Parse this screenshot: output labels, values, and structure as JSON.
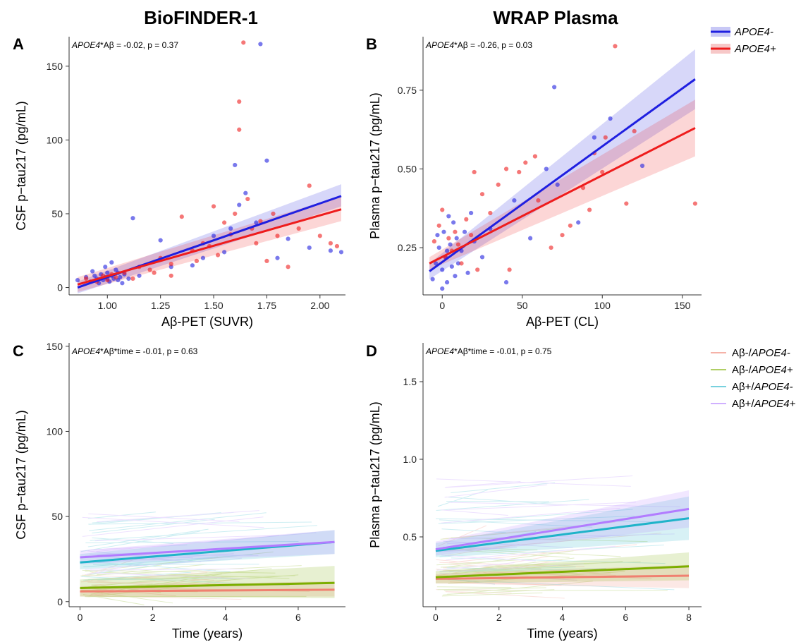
{
  "headers": {
    "left": "BioFINDER-1",
    "right": "WRAP Plasma"
  },
  "legend_top": {
    "entries": [
      {
        "label": "APOE4-",
        "color": "#1f1fe0"
      },
      {
        "label": "APOE4+",
        "color": "#ee1c1c"
      }
    ]
  },
  "legend_bottom": {
    "entries": [
      {
        "label_plain": "Aβ-/",
        "label_italic": "APOE4-",
        "color": "#f08070"
      },
      {
        "label_plain": "Aβ-/",
        "label_italic": "APOE4+",
        "color": "#7cae00"
      },
      {
        "label_plain": "Aβ+/",
        "label_italic": "APOE4-",
        "color": "#1fb3c9"
      },
      {
        "label_plain": "Aβ+/",
        "label_italic": "APOE4+",
        "color": "#b27cff"
      }
    ]
  },
  "chart_data": [
    {
      "panel": "A",
      "type": "scatter",
      "annotation_italic": "APOE4",
      "annotation_rest": "*Aβ = -0.02, p = 0.37",
      "xlabel": "Aβ-PET (SUVR)",
      "ylabel": "CSF p−tau217 (pg/mL)",
      "xlim": [
        0.82,
        2.12
      ],
      "ylim": [
        -5,
        170
      ],
      "xticks": [
        1.0,
        1.25,
        1.5,
        1.75,
        2.0
      ],
      "xtick_labels": [
        "1.00",
        "1.25",
        "1.50",
        "1.75",
        "2.00"
      ],
      "yticks": [
        0,
        50,
        100,
        150
      ],
      "ytick_labels": [
        "0",
        "50",
        "100",
        "150"
      ],
      "series": [
        {
          "name": "APOE4-",
          "color": "#1f1fe0",
          "fit": {
            "x": [
              0.86,
              2.1
            ],
            "y": [
              0,
              62
            ]
          },
          "ci_low": [
            -4,
            55
          ],
          "ci_high": [
            4,
            70
          ],
          "points": [
            [
              0.86,
              5
            ],
            [
              0.9,
              7
            ],
            [
              0.92,
              4
            ],
            [
              0.94,
              8
            ],
            [
              0.95,
              6
            ],
            [
              0.96,
              3
            ],
            [
              0.97,
              9
            ],
            [
              0.98,
              5
            ],
            [
              0.99,
              7
            ],
            [
              1.0,
              6
            ],
            [
              1.0,
              10
            ],
            [
              1.01,
              4
            ],
            [
              1.02,
              8
            ],
            [
              1.03,
              6
            ],
            [
              1.04,
              12
            ],
            [
              1.05,
              5
            ],
            [
              1.06,
              7
            ],
            [
              1.07,
              3
            ],
            [
              1.08,
              9
            ],
            [
              1.1,
              6
            ],
            [
              1.12,
              47
            ],
            [
              0.93,
              11
            ],
            [
              0.99,
              14
            ],
            [
              1.02,
              17
            ],
            [
              1.05,
              10
            ],
            [
              1.15,
              8
            ],
            [
              1.25,
              32
            ],
            [
              1.3,
              14
            ],
            [
              1.4,
              15
            ],
            [
              1.45,
              20
            ],
            [
              1.55,
              24
            ],
            [
              1.6,
              83
            ],
            [
              1.62,
              56
            ],
            [
              1.65,
              64
            ],
            [
              1.7,
              44
            ],
            [
              1.72,
              165
            ],
            [
              1.75,
              86
            ],
            [
              1.8,
              20
            ],
            [
              1.85,
              33
            ],
            [
              1.95,
              27
            ],
            [
              2.05,
              25
            ],
            [
              2.1,
              24
            ],
            [
              1.5,
              35
            ],
            [
              1.58,
              40
            ]
          ]
        },
        {
          "name": "APOE4+",
          "color": "#ee1c1c",
          "fit": {
            "x": [
              0.86,
              2.1
            ],
            "y": [
              2,
              53
            ]
          },
          "ci_low": [
            -3,
            45
          ],
          "ci_high": [
            7,
            62
          ],
          "points": [
            [
              0.9,
              6
            ],
            [
              0.95,
              4
            ],
            [
              0.98,
              8
            ],
            [
              1.0,
              5
            ],
            [
              1.02,
              9
            ],
            [
              1.04,
              7
            ],
            [
              1.08,
              10
            ],
            [
              1.12,
              6
            ],
            [
              1.15,
              14
            ],
            [
              1.2,
              12
            ],
            [
              1.25,
              20
            ],
            [
              1.3,
              16
            ],
            [
              1.35,
              48
            ],
            [
              1.4,
              25
            ],
            [
              1.45,
              30
            ],
            [
              1.5,
              55
            ],
            [
              1.55,
              44
            ],
            [
              1.58,
              36
            ],
            [
              1.6,
              50
            ],
            [
              1.62,
              126
            ],
            [
              1.62,
              107
            ],
            [
              1.64,
              166
            ],
            [
              1.66,
              60
            ],
            [
              1.68,
              40
            ],
            [
              1.7,
              30
            ],
            [
              1.72,
              45
            ],
            [
              1.75,
              18
            ],
            [
              1.78,
              50
            ],
            [
              1.8,
              35
            ],
            [
              1.85,
              14
            ],
            [
              1.9,
              40
            ],
            [
              1.95,
              69
            ],
            [
              2.0,
              35
            ],
            [
              2.05,
              30
            ],
            [
              2.08,
              28
            ],
            [
              1.48,
              28
            ],
            [
              1.52,
              22
            ],
            [
              1.42,
              18
            ],
            [
              1.3,
              8
            ],
            [
              1.22,
              10
            ]
          ]
        }
      ]
    },
    {
      "panel": "B",
      "type": "scatter",
      "annotation_italic": "APOE4",
      "annotation_rest": "*Aβ = -0.26, p = 0.03",
      "xlabel": "Aβ-PET (CL)",
      "ylabel": "Plasma p−tau217 (pg/mL)",
      "xlim": [
        -12,
        162
      ],
      "ylim": [
        0.1,
        0.92
      ],
      "xticks": [
        0,
        50,
        100,
        150
      ],
      "xtick_labels": [
        "0",
        "50",
        "100",
        "150"
      ],
      "yticks": [
        0.25,
        0.5,
        0.75
      ],
      "ytick_labels": [
        "0.25",
        "0.50",
        "0.75"
      ],
      "series": [
        {
          "name": "APOE4-",
          "color": "#1f1fe0",
          "fit": {
            "x": [
              -8,
              158
            ],
            "y": [
              0.175,
              0.785
            ]
          },
          "ci_low": [
            0.15,
            0.69
          ],
          "ci_high": [
            0.2,
            0.88
          ],
          "points": [
            [
              -6,
              0.15
            ],
            [
              -4,
              0.2
            ],
            [
              -2,
              0.25
            ],
            [
              0,
              0.18
            ],
            [
              1,
              0.3
            ],
            [
              2,
              0.22
            ],
            [
              3,
              0.14
            ],
            [
              4,
              0.35
            ],
            [
              5,
              0.26
            ],
            [
              6,
              0.19
            ],
            [
              7,
              0.33
            ],
            [
              8,
              0.16
            ],
            [
              9,
              0.28
            ],
            [
              10,
              0.2
            ],
            [
              12,
              0.24
            ],
            [
              14,
              0.3
            ],
            [
              16,
              0.17
            ],
            [
              18,
              0.36
            ],
            [
              20,
              0.27
            ],
            [
              25,
              0.22
            ],
            [
              30,
              0.31
            ],
            [
              40,
              0.14
            ],
            [
              45,
              0.4
            ],
            [
              55,
              0.28
            ],
            [
              65,
              0.5
            ],
            [
              70,
              0.76
            ],
            [
              72,
              0.45
            ],
            [
              85,
              0.33
            ],
            [
              95,
              0.6
            ],
            [
              105,
              0.66
            ],
            [
              125,
              0.51
            ],
            [
              0,
              0.12
            ],
            [
              3,
              0.24
            ],
            [
              -3,
              0.29
            ]
          ]
        },
        {
          "name": "APOE4+",
          "color": "#ee1c1c",
          "fit": {
            "x": [
              -8,
              158
            ],
            "y": [
              0.2,
              0.63
            ]
          },
          "ci_low": [
            0.18,
            0.54
          ],
          "ci_high": [
            0.22,
            0.72
          ],
          "points": [
            [
              -5,
              0.27
            ],
            [
              -2,
              0.32
            ],
            [
              0,
              0.37
            ],
            [
              2,
              0.22
            ],
            [
              4,
              0.28
            ],
            [
              6,
              0.24
            ],
            [
              8,
              0.3
            ],
            [
              10,
              0.26
            ],
            [
              12,
              0.2
            ],
            [
              15,
              0.34
            ],
            [
              18,
              0.29
            ],
            [
              20,
              0.49
            ],
            [
              22,
              0.18
            ],
            [
              25,
              0.42
            ],
            [
              30,
              0.36
            ],
            [
              35,
              0.45
            ],
            [
              40,
              0.5
            ],
            [
              42,
              0.18
            ],
            [
              48,
              0.49
            ],
            [
              52,
              0.52
            ],
            [
              58,
              0.54
            ],
            [
              60,
              0.4
            ],
            [
              68,
              0.25
            ],
            [
              75,
              0.29
            ],
            [
              80,
              0.32
            ],
            [
              88,
              0.44
            ],
            [
              92,
              0.37
            ],
            [
              95,
              0.55
            ],
            [
              100,
              0.49
            ],
            [
              102,
              0.6
            ],
            [
              108,
              0.89
            ],
            [
              115,
              0.39
            ],
            [
              120,
              0.62
            ],
            [
              158,
              0.39
            ]
          ]
        }
      ]
    },
    {
      "panel": "C",
      "type": "line",
      "annotation_italic": "APOE4",
      "annotation_rest": "*Aβ*time = -0.01, p = 0.63",
      "xlabel": "Time (years)",
      "ylabel": "CSF p−tau217 (pg/mL)",
      "xlim": [
        -0.3,
        7.3
      ],
      "ylim": [
        -3,
        152
      ],
      "xticks": [
        0,
        2,
        4,
        6
      ],
      "xtick_labels": [
        "0",
        "2",
        "4",
        "6"
      ],
      "yticks": [
        0,
        50,
        100,
        150
      ],
      "ytick_labels": [
        "0",
        "50",
        "100",
        "150"
      ],
      "series": [
        {
          "name": "Aβ-/APOE4-",
          "color": "#f08070",
          "fit": {
            "x": [
              0,
              7
            ],
            "y": [
              6,
              7
            ]
          },
          "ci_low": [
            3,
            3
          ],
          "ci_high": [
            9,
            12
          ]
        },
        {
          "name": "Aβ-/APOE4+",
          "color": "#7cae00",
          "fit": {
            "x": [
              0,
              7
            ],
            "y": [
              8,
              11
            ]
          },
          "ci_low": [
            3,
            2
          ],
          "ci_high": [
            13,
            21
          ]
        },
        {
          "name": "Aβ+/APOE4-",
          "color": "#1fb3c9",
          "fit": {
            "x": [
              0,
              7
            ],
            "y": [
              23,
              35
            ]
          },
          "ci_low": [
            19,
            28
          ],
          "ci_high": [
            28,
            42
          ]
        },
        {
          "name": "Aβ+/APOE4+",
          "color": "#b27cff",
          "fit": {
            "x": [
              0,
              7
            ],
            "y": [
              26,
              35
            ]
          },
          "ci_low": [
            22,
            28
          ],
          "ci_high": [
            30,
            42
          ]
        }
      ]
    },
    {
      "panel": "D",
      "type": "line",
      "annotation_italic": "APOE4",
      "annotation_rest": "*Aβ*time = -0.01, p = 0.75",
      "xlabel": "Time (years)",
      "ylabel": "Plasma p−tau217 (pg/mL)",
      "xlim": [
        -0.4,
        8.4
      ],
      "ylim": [
        0.05,
        1.75
      ],
      "xticks": [
        0,
        2,
        4,
        6,
        8
      ],
      "xtick_labels": [
        "0",
        "2",
        "4",
        "6",
        "8"
      ],
      "yticks": [
        0.5,
        1.0,
        1.5
      ],
      "ytick_labels": [
        "0.5",
        "1.0",
        "1.5"
      ],
      "series": [
        {
          "name": "Aβ-/APOE4-",
          "color": "#f08070",
          "fit": {
            "x": [
              0,
              8
            ],
            "y": [
              0.23,
              0.25
            ]
          },
          "ci_low": [
            0.2,
            0.17
          ],
          "ci_high": [
            0.26,
            0.32
          ]
        },
        {
          "name": "Aβ-/APOE4+",
          "color": "#7cae00",
          "fit": {
            "x": [
              0,
              8
            ],
            "y": [
              0.24,
              0.31
            ]
          },
          "ci_low": [
            0.2,
            0.22
          ],
          "ci_high": [
            0.28,
            0.4
          ]
        },
        {
          "name": "Aβ+/APOE4-",
          "color": "#1fb3c9",
          "fit": {
            "x": [
              0,
              8
            ],
            "y": [
              0.41,
              0.62
            ]
          },
          "ci_low": [
            0.37,
            0.48
          ],
          "ci_high": [
            0.46,
            0.76
          ]
        },
        {
          "name": "Aβ+/APOE4+",
          "color": "#b27cff",
          "fit": {
            "x": [
              0,
              8
            ],
            "y": [
              0.42,
              0.68
            ]
          },
          "ci_low": [
            0.38,
            0.56
          ],
          "ci_high": [
            0.47,
            0.8
          ]
        }
      ]
    }
  ]
}
